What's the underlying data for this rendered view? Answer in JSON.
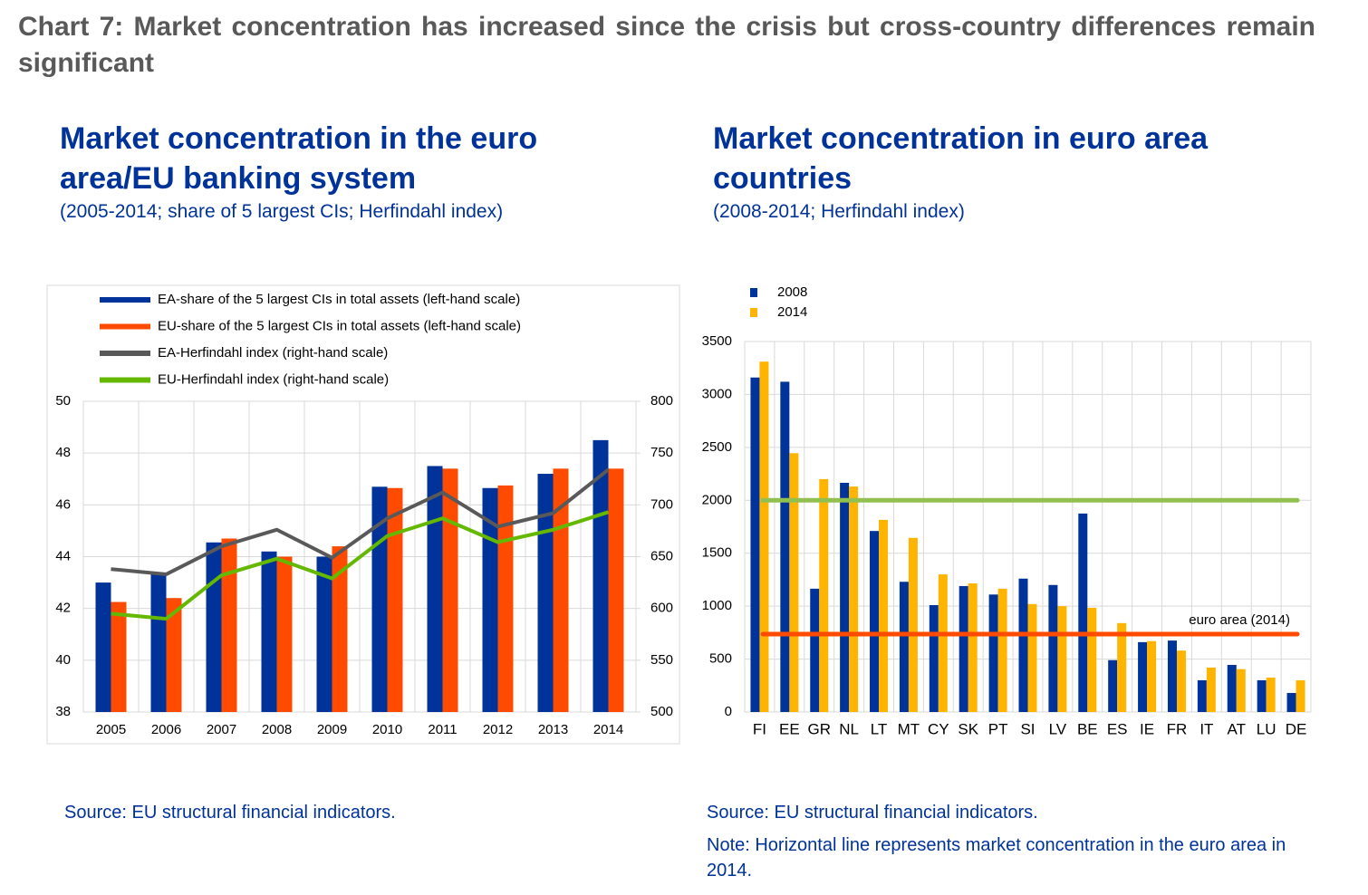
{
  "title": "Chart 7: Market concentration has increased since the crisis but cross-country differences remain significant",
  "chart_data": [
    {
      "type": "bar",
      "title": "Market concentration in the euro area/EU banking system",
      "subtitle": "(2005-2014; share of 5 largest CIs; Herfindahl index)",
      "source": "Source: EU structural financial indicators.",
      "categories": [
        "2005",
        "2006",
        "2007",
        "2008",
        "2009",
        "2010",
        "2011",
        "2012",
        "2013",
        "2014"
      ],
      "ylim": [
        38,
        50
      ],
      "yticks": [
        38,
        40,
        42,
        44,
        46,
        48,
        50
      ],
      "y2lim": [
        500,
        800
      ],
      "y2ticks": [
        500,
        550,
        600,
        650,
        700,
        750,
        800
      ],
      "grid": true,
      "series": [
        {
          "name": "EA-share of the 5 largest CIs in total assets (left-hand scale)",
          "kind": "bar",
          "color": "#003399",
          "values": [
            43.0,
            43.35,
            44.55,
            44.2,
            44.0,
            46.7,
            47.5,
            46.65,
            47.2,
            48.5
          ]
        },
        {
          "name": "EU-share of the 5 largest CIs in total assets (left-hand scale)",
          "kind": "bar",
          "color": "#ff4b00",
          "values": [
            42.25,
            42.4,
            44.7,
            44.0,
            44.4,
            46.65,
            47.4,
            46.75,
            47.4,
            47.4
          ]
        },
        {
          "name": "EA-Herfindahl index (right-hand scale)",
          "kind": "line",
          "axis": "y2",
          "color": "#595959",
          "values": [
            638,
            633,
            660,
            676,
            649,
            687,
            712,
            679,
            692,
            734
          ]
        },
        {
          "name": "EU-Herfindahl index (right-hand scale)",
          "kind": "line",
          "axis": "y2",
          "color": "#65b800",
          "values": [
            595,
            590,
            632,
            648,
            629,
            670,
            687,
            664,
            676,
            693
          ]
        }
      ]
    },
    {
      "type": "bar",
      "title": "Market concentration in euro area countries",
      "subtitle": "(2008-2014; Herfindahl index)",
      "source": "Source: EU structural financial indicators.",
      "note": "Note: Horizontal line represents market concentration in the euro area in 2014.",
      "categories": [
        "FI",
        "EE",
        "GR",
        "NL",
        "LT",
        "MT",
        "CY",
        "SK",
        "PT",
        "SI",
        "LV",
        "BE",
        "ES",
        "IE",
        "FR",
        "IT",
        "AT",
        "LU",
        "DE"
      ],
      "ylim": [
        0,
        3500
      ],
      "yticks": [
        0,
        500,
        1000,
        1500,
        2000,
        2500,
        3000,
        3500
      ],
      "grid": true,
      "series": [
        {
          "name": "2008",
          "kind": "bar",
          "color": "#003399",
          "values": [
            3160,
            3120,
            1165,
            2165,
            1710,
            1230,
            1010,
            1190,
            1110,
            1260,
            1200,
            1875,
            490,
            660,
            675,
            300,
            445,
            300,
            180
          ]
        },
        {
          "name": "2014",
          "kind": "bar",
          "color": "#ffb400",
          "values": [
            3310,
            2445,
            2200,
            2130,
            1815,
            1645,
            1300,
            1215,
            1165,
            1020,
            1000,
            985,
            840,
            670,
            580,
            420,
            405,
            325,
            300
          ]
        }
      ],
      "reference_lines": [
        {
          "value": 2000,
          "color": "#92c050"
        },
        {
          "value": 736,
          "color": "#ff4b00",
          "label": "euro area (2014)"
        }
      ]
    }
  ]
}
